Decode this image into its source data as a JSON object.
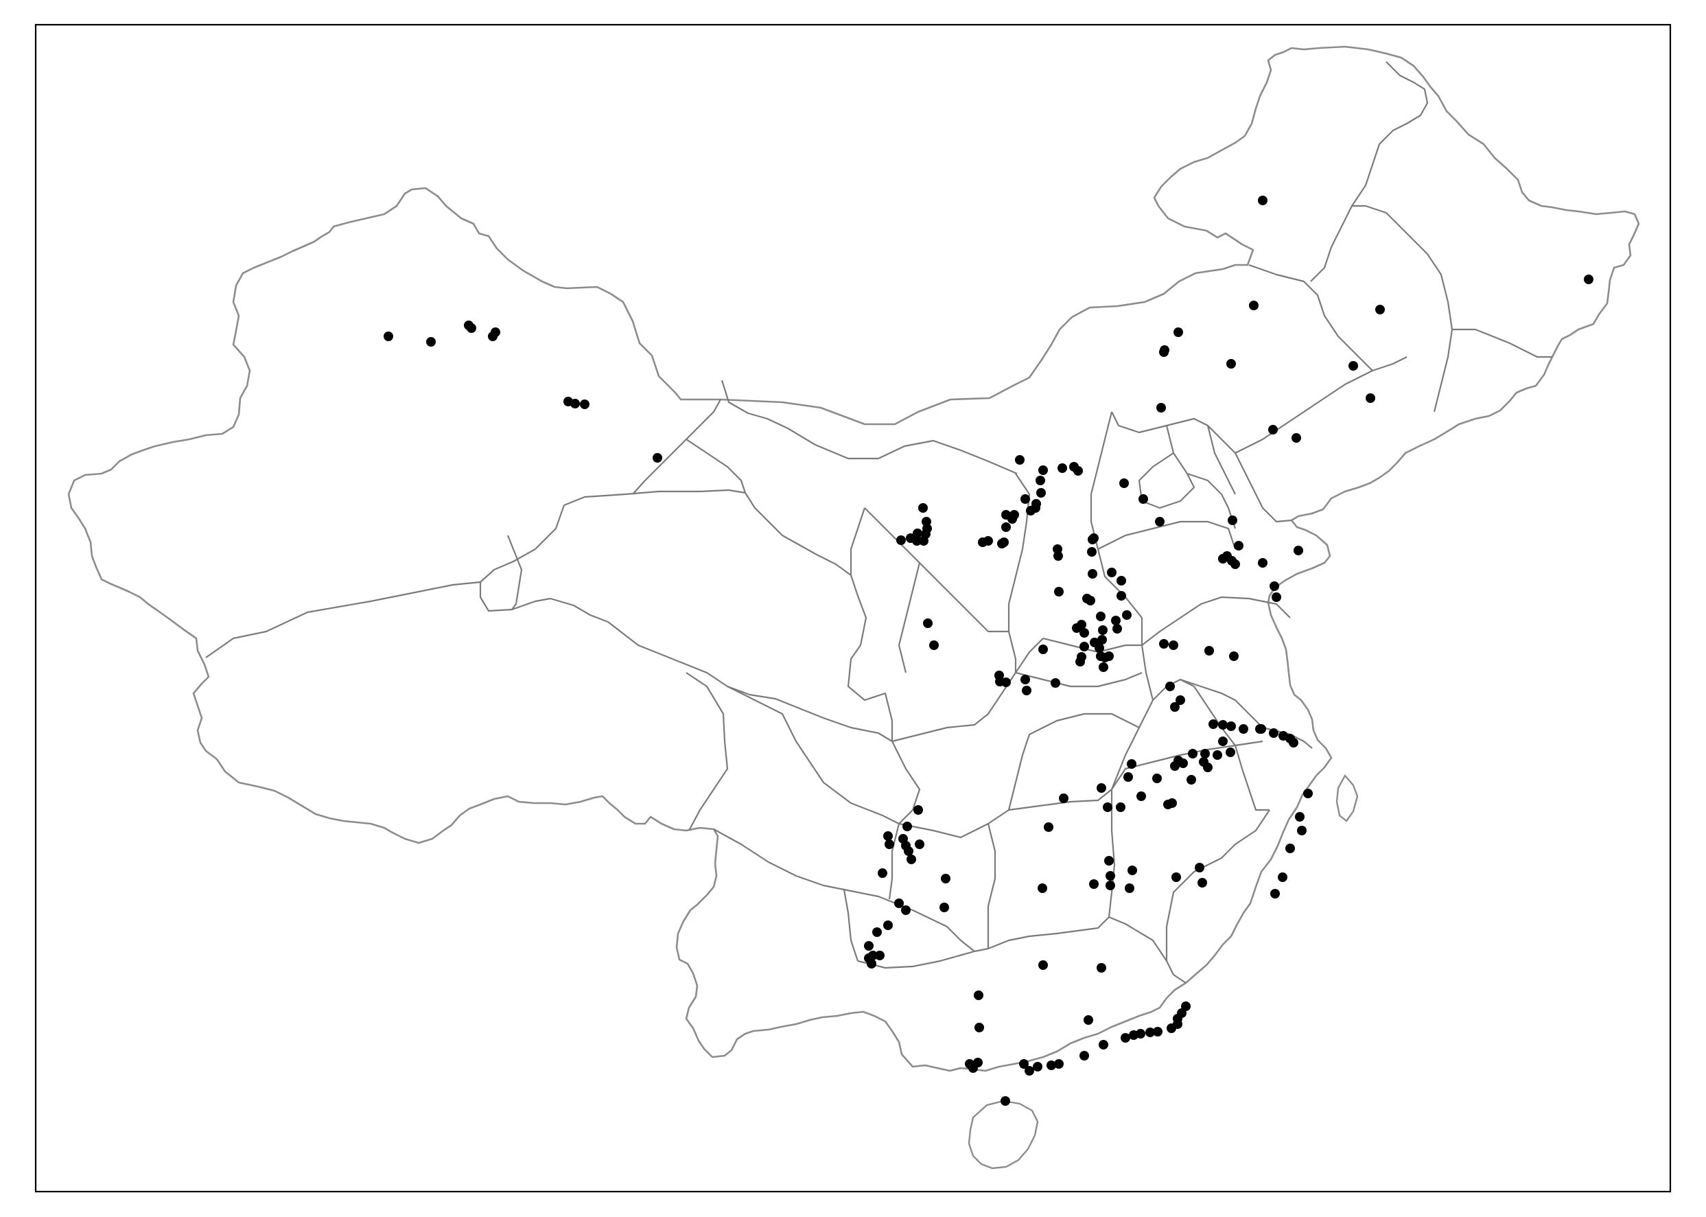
{
  "map": {
    "kind": "point map over province boundaries",
    "background_color": "#ffffff",
    "frame_color": "#000000",
    "outer_border_color": "#8c8c8c",
    "province_border_color": "#7a7a7a",
    "point_color": "#000000",
    "point_count": 178
  }
}
